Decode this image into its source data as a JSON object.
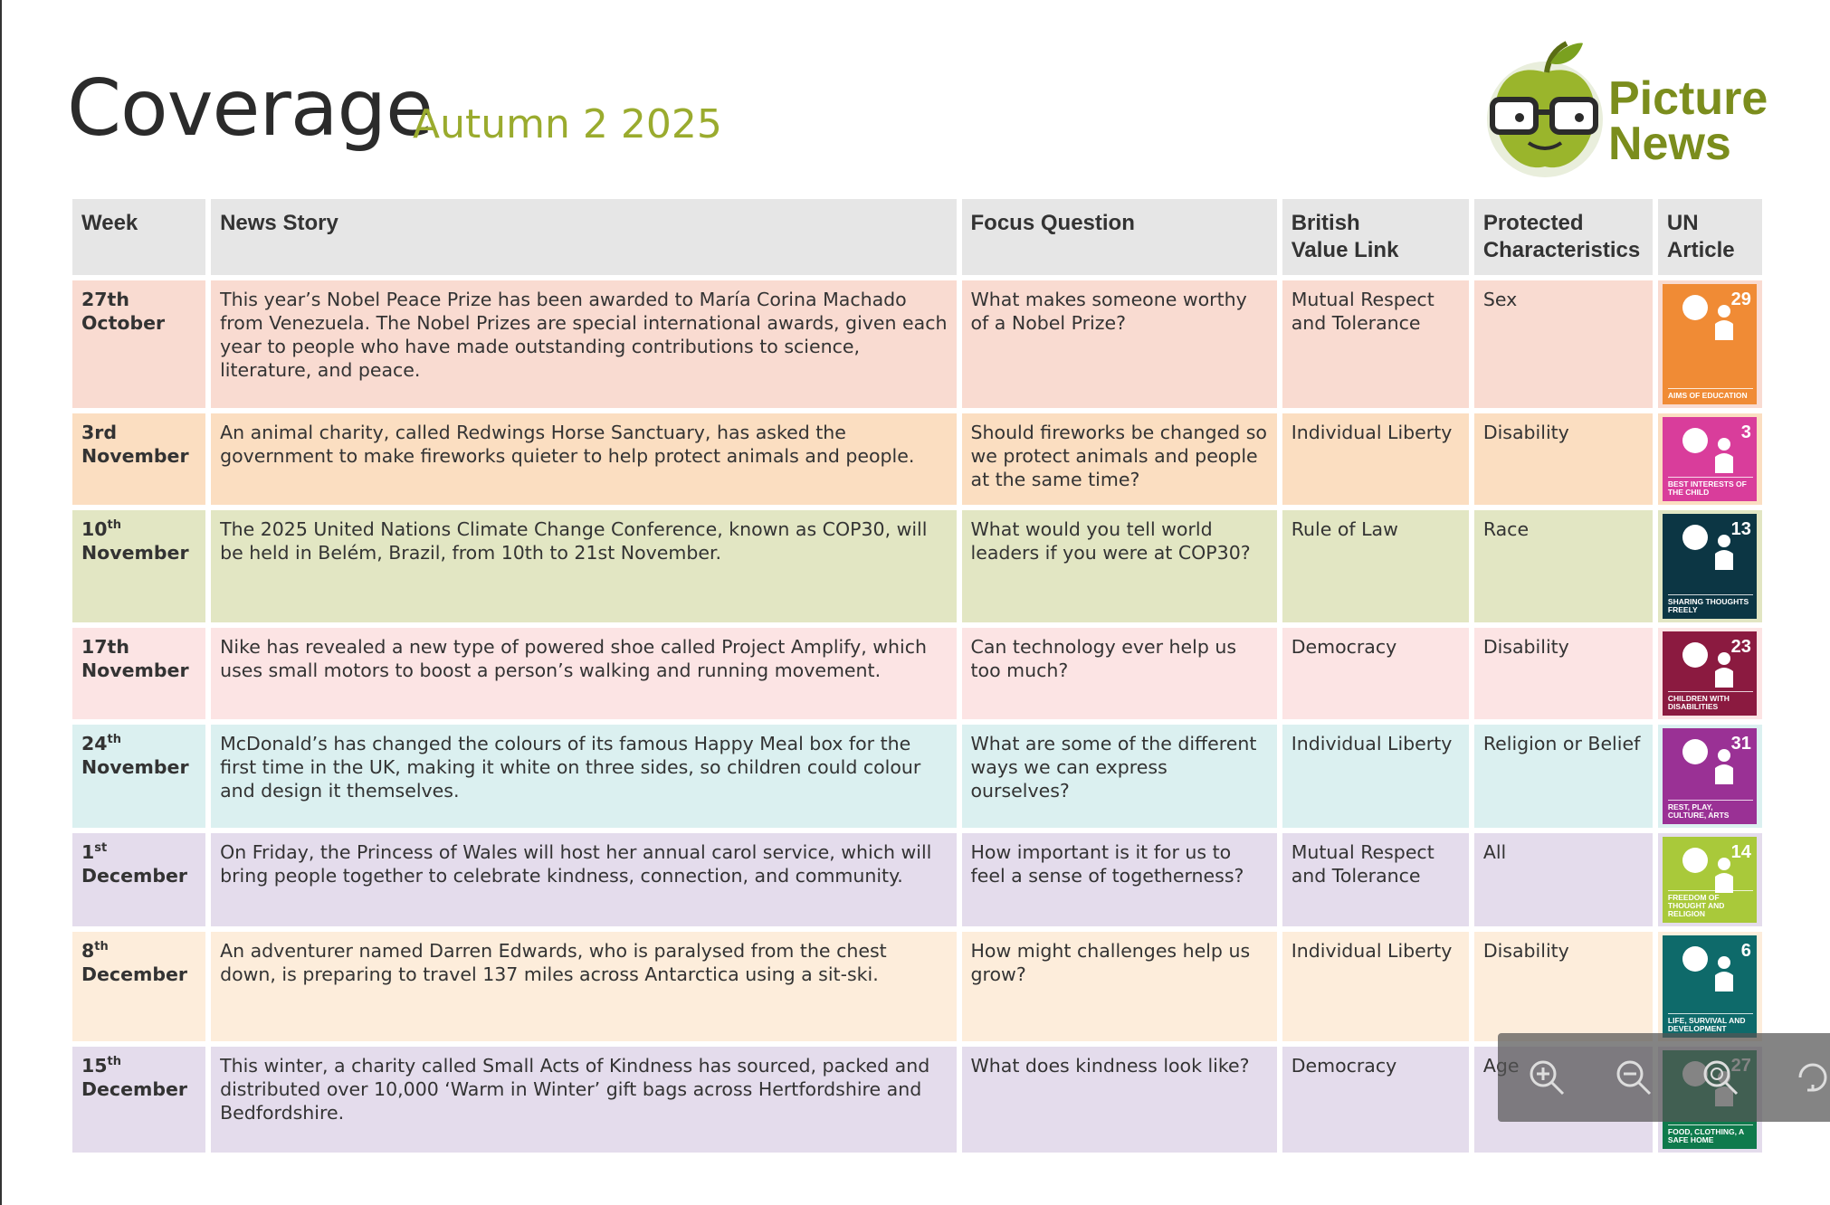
{
  "header": {
    "title": "Coverage",
    "subtitle": "Autumn 2 2025",
    "logo": [
      "Picture",
      "News"
    ]
  },
  "table": {
    "headers": [
      [
        "Week"
      ],
      [
        "News Story"
      ],
      [
        "Focus Question"
      ],
      [
        "British",
        "Value Link"
      ],
      [
        "Protected",
        "Characteristics"
      ],
      [
        "UN",
        "Article"
      ]
    ],
    "rows": [
      {
        "week": {
          "day": "27th",
          "month": "October"
        },
        "story": "This year’s Nobel Peace Prize has been awarded to María Corina Machado from Venezuela. The Nobel Prizes are special international awards, given each year to people who have made outstanding contributions to science, literature, and peace.",
        "question": "What makes someone worthy of a Nobel Prize?",
        "value": "Mutual Respect and Tolerance",
        "characteristic": "Sex",
        "article": {
          "number": "29",
          "caption": "AIMS OF EDUCATION",
          "color": "#f08b35"
        },
        "color": "#f9dbd1"
      },
      {
        "week": {
          "day": "3rd",
          "month": "November"
        },
        "story": "An animal charity, called Redwings Horse Sanctuary, has asked the government to make fireworks quieter to help protect animals and people.",
        "question": "Should fireworks be changed so we protect animals and people at the same time?",
        "value": "Individual Liberty",
        "characteristic": "Disability",
        "article": {
          "number": "3",
          "caption": "BEST INTERESTS OF THE CHILD",
          "color": "#d93d9b"
        },
        "color": "#fbdec1"
      },
      {
        "week": {
          "day": "10",
          "sup": "th",
          "month": "November"
        },
        "story": "The 2025 United Nations Climate Change Conference, known as COP30, will be held in Belém, Brazil, from 10th to 21st November.",
        "question": "What would you tell world leaders if you were at COP30?",
        "value": "Rule of Law",
        "characteristic": "Race",
        "article": {
          "number": "13",
          "caption": "SHARING THOUGHTS FREELY",
          "color": "#0c3644"
        },
        "color": "#e2e6c3"
      },
      {
        "week": {
          "day": "17th",
          "month": "November"
        },
        "story": "Nike has revealed a new type of powered shoe called Project Amplify, which uses small motors to boost a person’s walking and running movement.",
        "question": "Can technology ever help us too much?",
        "value": "Democracy",
        "characteristic": "Disability",
        "article": {
          "number": "23",
          "caption": "CHILDREN WITH DISABILITIES",
          "color": "#8b1a40"
        },
        "color": "#fce4e4"
      },
      {
        "week": {
          "day": "24",
          "sup": "th",
          "month": "November"
        },
        "story": "McDonald’s has changed the colours of its famous Happy Meal box for the first time in the UK, making it white on three sides, so children could colour and design it themselves.",
        "question": "What are some of the different ways we can express ourselves?",
        "value": "Individual Liberty",
        "characteristic": "Religion or Belief",
        "article": {
          "number": "31",
          "caption": "REST, PLAY, CULTURE, ARTS",
          "color": "#9a3195"
        },
        "color": "#dbf0f0"
      },
      {
        "week": {
          "day": "1",
          "sup": "st",
          "month": "December"
        },
        "story": "On Friday, the Princess of Wales will host her annual carol service, which will bring people together to celebrate kindness, connection, and community.",
        "question": "How important is it for us to feel a sense of togetherness?",
        "value": "Mutual Respect and Tolerance",
        "characteristic": "All",
        "article": {
          "number": "14",
          "caption": "FREEDOM OF THOUGHT AND RELIGION",
          "color": "#a9c93a"
        },
        "color": "#e4dcec"
      },
      {
        "week": {
          "day": "8",
          "sup": "th",
          "month": "December"
        },
        "story": "An adventurer named Darren Edwards, who is paralysed from the chest down, is preparing to travel 137 miles across Antarctica using a sit-ski.",
        "question": "How might challenges help us grow?",
        "value": "Individual Liberty",
        "characteristic": "Disability",
        "article": {
          "number": "6",
          "caption": "LIFE, SURVIVAL AND DEVELOPMENT",
          "color": "#0e6a6a"
        },
        "color": "#fdeddb"
      },
      {
        "week": {
          "day": "15",
          "sup": "th",
          "month": "December"
        },
        "story": "This winter, a charity called Small Acts of Kindness has sourced, packed and distributed over 10,000 ‘Warm in Winter’ gift bags across Hertfordshire and Bedfordshire.",
        "question": "What does kindness look like?",
        "value": "Democracy",
        "characteristic": "Age",
        "article": {
          "number": "27",
          "caption": "FOOD, CLOTHING, A SAFE HOME",
          "color": "#0f7a4c"
        },
        "color": "#e4dcec"
      }
    ]
  }
}
